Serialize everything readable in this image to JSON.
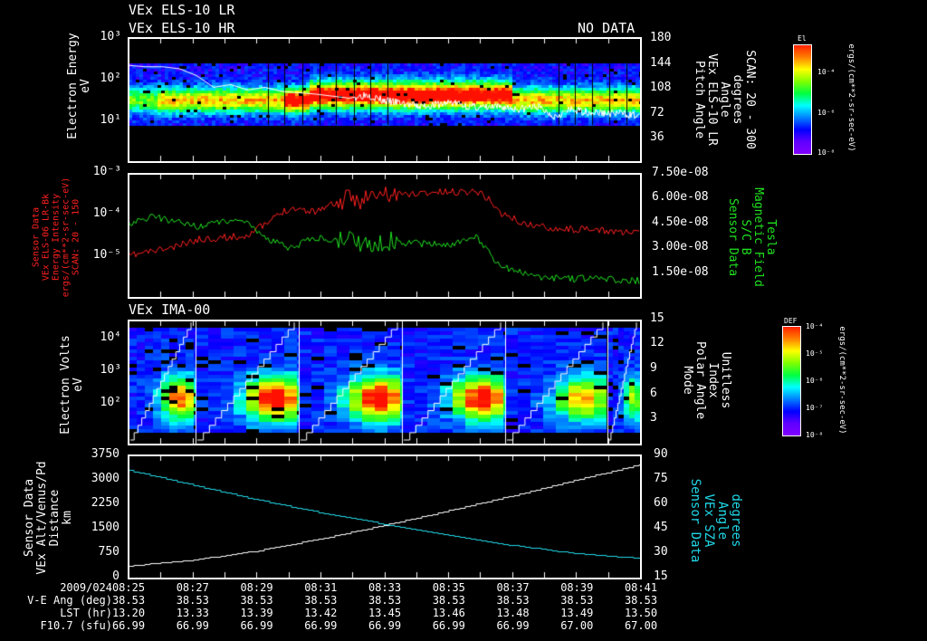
{
  "header": {
    "title_lr": "VEx ELS-10 LR",
    "title_hr": "VEx ELS-10 HR",
    "no_data": "NO DATA"
  },
  "panels": {
    "p1": {
      "ylabel": "Electron Energy\neV",
      "yticks": [
        "10³",
        "10²",
        "10¹"
      ],
      "y2ticks": [
        "180",
        "144",
        "108",
        "72",
        "36"
      ],
      "y2label": "SCAN: 20 - 300\ndegrees\nAngle\nVEx ELS-10 LR\nPitch Angle",
      "colorbar": {
        "title": "El",
        "ticks": [
          "10⁻⁴",
          "10⁻⁶",
          "10⁻⁸"
        ],
        "units": "ergs/(cm**2-sr-sec-eV)"
      }
    },
    "p2": {
      "yticks": [
        "10⁻³",
        "10⁻⁴",
        "10⁻⁵"
      ],
      "ylabel": "Sensor Data\nVEx ELS-06 LR-Bk\nEnergy Intensity\nergs/(cm**2-sr-sec-eV)\nSCAN: 20 - 150",
      "y2ticks": [
        "7.50e-08",
        "6.00e-08",
        "4.50e-08",
        "3.00e-08",
        "1.50e-08"
      ],
      "y2label": "Tesla\nMagnetic Field\nS/C B\nSensor Data"
    },
    "p3": {
      "title": "VEx IMA-00",
      "ylabel": "Electron Volts\neV",
      "yticks": [
        "10⁴",
        "10³",
        "10²"
      ],
      "y2ticks": [
        "15",
        "12",
        "9",
        "6",
        "3"
      ],
      "y2label": "Unitless\nIndex\nPolar Angle\nMode",
      "colorbar": {
        "title": "DEF",
        "ticks": [
          "10⁻⁴",
          "10⁻⁵",
          "10⁻⁶",
          "10⁻⁷",
          "10⁻⁸"
        ],
        "units": "ergs/(cm**2-sr-sec-eV)"
      }
    },
    "p4": {
      "yticks": [
        "3750",
        "3000",
        "2250",
        "1500",
        "750",
        "0"
      ],
      "ylabel": "Sensor Data\nVEx Alt/Venus/Pd\nDistance\nkm",
      "y2ticks": [
        "90",
        "75",
        "60",
        "45",
        "30",
        "15"
      ],
      "y2label": "degrees\nAngle\nVEx SZA\nSensor Data"
    }
  },
  "footer": {
    "row_labels": [
      "2009/024",
      "V-E Ang (deg)",
      "LST (hr)",
      "F10.7 (sfu)"
    ],
    "times": [
      "08:25",
      "08:27",
      "08:29",
      "08:31",
      "08:33",
      "08:35",
      "08:37",
      "08:39",
      "08:41"
    ],
    "ve_ang": [
      "38.53",
      "38.53",
      "38.53",
      "38.53",
      "38.53",
      "38.53",
      "38.53",
      "38.53",
      "38.53"
    ],
    "lst": [
      "13.20",
      "13.33",
      "13.39",
      "13.42",
      "13.45",
      "13.46",
      "13.48",
      "13.49",
      "13.50"
    ],
    "f107": [
      "66.99",
      "66.99",
      "66.99",
      "66.99",
      "66.99",
      "66.99",
      "66.99",
      "67.00",
      "67.00"
    ]
  },
  "colors": {
    "red_trace": "#ff2020",
    "green_trace": "#20e020",
    "cyan_trace": "#20d8e8",
    "white_trace": "#ffffff",
    "p2_label": "#ff2020",
    "p2_right_label": "#20e020",
    "p4_right_label": "#20d8e8"
  },
  "chart_data": [
    {
      "type": "heatmap",
      "title": "VEx ELS-10 LR / VEx ELS-10 HR",
      "xlabel": "UT 2009/024",
      "ylabel": "Electron Energy (eV)",
      "x": [
        "08:25",
        "08:27",
        "08:29",
        "08:31",
        "08:33",
        "08:35",
        "08:37",
        "08:39",
        "08:41"
      ],
      "ylim": [
        1,
        1000
      ],
      "yscale": "log",
      "y2label": "Pitch Angle (degrees), SCAN: 20 - 300",
      "y2lim": [
        0,
        180
      ],
      "colorbar": {
        "label": "El ergs/(cm**2-sr-sec-eV)",
        "range": [
          "1e-8",
          "1e-3"
        ]
      },
      "annotation": "NO DATA",
      "overlay_pitch_angle": [
        140,
        138,
        138,
        135,
        125,
        108,
        112,
        104,
        108,
        102,
        100,
        98,
        95,
        92,
        98,
        88,
        85,
        80,
        82,
        86,
        80,
        78,
        79,
        76,
        80,
        66,
        75,
        72,
        70,
        70,
        66
      ]
    },
    {
      "type": "line",
      "x": [
        "08:25",
        "08:27",
        "08:29",
        "08:31",
        "08:33",
        "08:35",
        "08:37",
        "08:39",
        "08:41"
      ],
      "series": [
        {
          "name": "VEx ELS-06 LR-Bk Energy Intensity (ergs/(cm**2-sr-sec-eV)), SCAN: 20 - 150",
          "axis": "left",
          "scale": "log",
          "values": [
            1e-05,
            1.3e-05,
            1.6e-05,
            2.5e-05,
            2.8e-05,
            3e-05,
            6e-05,
            0.00015,
            0.00012,
            0.0002,
            0.00025,
            0.0003,
            0.00032,
            0.00035,
            0.00036,
            0.00038,
            0.00011,
            6e-05,
            5e-05,
            4.5e-05,
            4.2e-05,
            4e-05,
            3.5e-05
          ]
        },
        {
          "name": "S/C B Magnetic Field (Tesla)",
          "axis": "right",
          "scale": "linear",
          "values": [
            4.4e-08,
            4.9e-08,
            4.6e-08,
            4.3e-08,
            4.6e-08,
            4.7e-08,
            3.5e-08,
            3e-08,
            3.6e-08,
            3.4e-08,
            3.3e-08,
            3.4e-08,
            3.3e-08,
            3.2e-08,
            3.2e-08,
            3.6e-08,
            1.9e-08,
            1.4e-08,
            1.2e-08,
            1.1e-08,
            1.1e-08,
            1.05e-08,
            1e-08
          ]
        }
      ],
      "ylim": [
        1e-06,
        0.001
      ],
      "y2lim": [
        0,
        7.5e-08
      ]
    },
    {
      "type": "heatmap",
      "title": "VEx IMA-00",
      "ylabel": "Electron Volts (eV)",
      "yscale": "log",
      "ylim": [
        10,
        50000
      ],
      "y2label": "Mode / Polar Angle Index (Unitless)",
      "y2lim": [
        0,
        15
      ],
      "colorbar": {
        "label": "DEF ergs/(cm**2-sr-sec-eV)",
        "ticks": [
          "1e-4",
          "1e-5",
          "1e-6",
          "1e-7",
          "1e-8"
        ]
      },
      "scan_boundaries": [
        "08:26:40",
        "08:28:50",
        "08:31:00",
        "08:33:10",
        "08:35:20",
        "08:37:30",
        "08:39:40"
      ]
    },
    {
      "type": "line",
      "x": [
        "08:25",
        "08:27",
        "08:29",
        "08:31",
        "08:33",
        "08:35",
        "08:37",
        "08:39",
        "08:41"
      ],
      "series": [
        {
          "name": "VEx Alt/Venus/Pd Distance (km)",
          "axis": "left",
          "values": [
            370,
            550,
            830,
            1200,
            1620,
            2060,
            2520,
            3000,
            3480
          ]
        },
        {
          "name": "VEx SZA Angle (degrees)",
          "axis": "right",
          "values": [
            81,
            72,
            63,
            55,
            48,
            41,
            35,
            30,
            27
          ]
        }
      ],
      "ylim": [
        0,
        3750
      ],
      "y2lim": [
        15,
        90
      ]
    }
  ]
}
